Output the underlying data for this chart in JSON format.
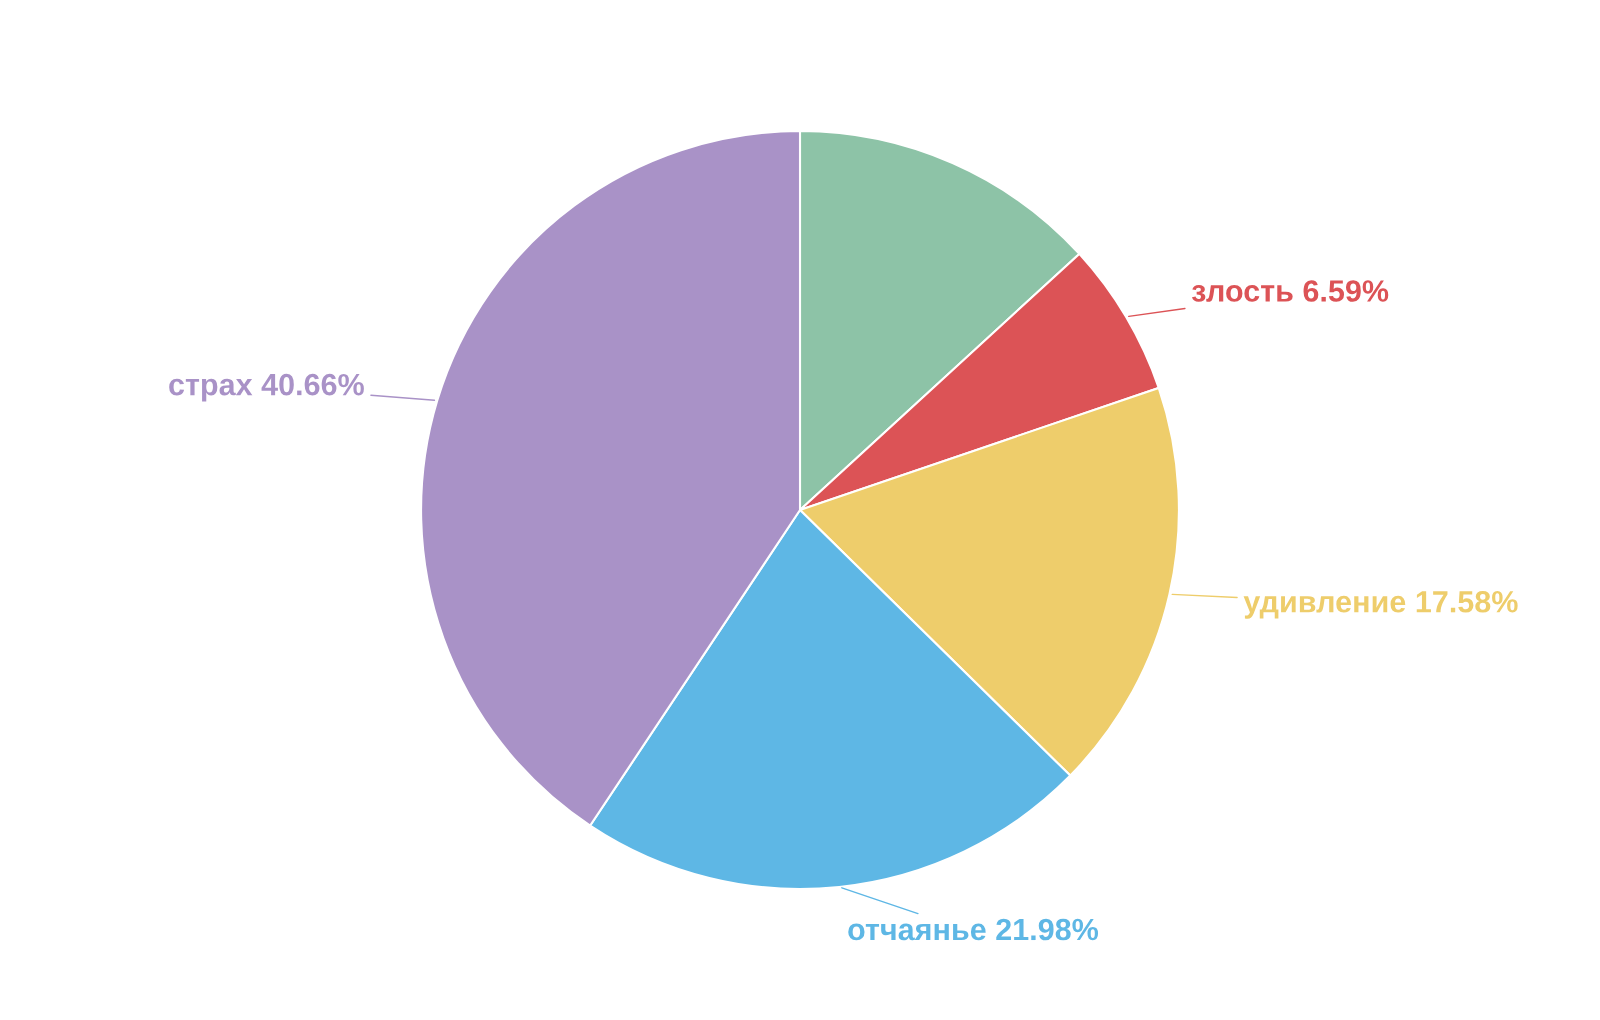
{
  "chart_data": {
    "type": "pie",
    "categories": [
      null,
      "злость",
      "удивление",
      "отчаянье",
      "страх"
    ],
    "values": [
      13.19,
      6.59,
      17.58,
      21.98,
      40.66
    ],
    "value_labels": [
      null,
      "6.59%",
      "17.58%",
      "21.98%",
      "40.66%"
    ],
    "colors": [
      "#8dc3a7",
      "#dc5356",
      "#eecd6b",
      "#5eb7e5",
      "#a992c7"
    ]
  }
}
